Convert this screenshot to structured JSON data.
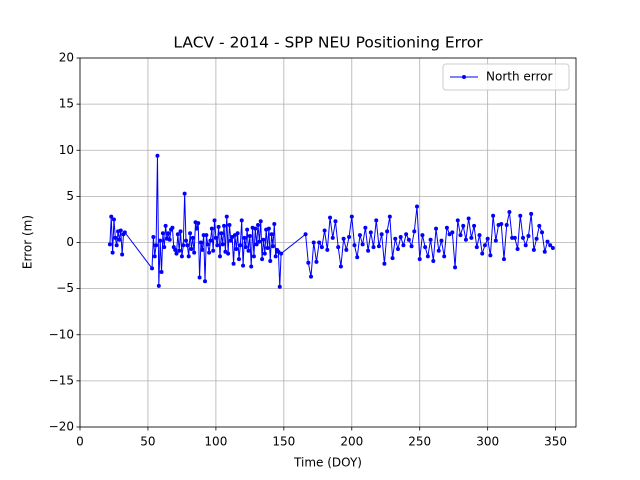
{
  "chart_data": {
    "type": "line",
    "title": "LACV - 2014 - SPP NEU Positioning Error",
    "xlabel": "Time (DOY)",
    "ylabel": "Error (m)",
    "xlim": [
      0,
      365
    ],
    "ylim": [
      -20,
      20
    ],
    "xticks": [
      0,
      50,
      100,
      150,
      200,
      250,
      300,
      350
    ],
    "yticks": [
      {
        "value": -20,
        "label": "−20"
      },
      {
        "value": -15,
        "label": "−15"
      },
      {
        "value": -10,
        "label": "−10"
      },
      {
        "value": -5,
        "label": "−5"
      },
      0,
      5,
      10,
      15,
      20
    ],
    "grid": true,
    "legend": "upper right",
    "x": [
      22,
      23,
      24,
      25,
      26,
      27,
      28,
      29,
      30,
      31,
      32,
      33,
      53,
      54,
      55,
      56,
      57,
      58,
      59,
      60,
      61,
      62,
      63,
      64,
      65,
      66,
      67,
      68,
      69,
      70,
      71,
      72,
      73,
      74,
      75,
      76,
      77,
      78,
      79,
      80,
      81,
      82,
      83,
      84,
      85,
      86,
      87,
      88,
      89,
      90,
      91,
      92,
      93,
      94,
      95,
      96,
      97,
      98,
      99,
      100,
      101,
      102,
      103,
      104,
      105,
      106,
      107,
      108,
      109,
      110,
      111,
      112,
      113,
      114,
      115,
      116,
      117,
      118,
      119,
      120,
      121,
      122,
      123,
      124,
      125,
      126,
      127,
      128,
      129,
      130,
      131,
      132,
      133,
      134,
      135,
      136,
      137,
      138,
      139,
      140,
      141,
      142,
      143,
      144,
      145,
      146,
      147,
      148,
      166,
      168,
      170,
      172,
      174,
      176,
      178,
      180,
      182,
      184,
      186,
      188,
      190,
      192,
      194,
      196,
      198,
      200,
      202,
      204,
      206,
      208,
      210,
      212,
      214,
      216,
      218,
      220,
      222,
      224,
      226,
      228,
      230,
      232,
      234,
      236,
      238,
      240,
      242,
      244,
      246,
      248,
      250,
      252,
      254,
      256,
      258,
      260,
      262,
      264,
      266,
      268,
      270,
      272,
      274,
      276,
      278,
      280,
      282,
      284,
      286,
      288,
      290,
      292,
      294,
      296,
      298,
      300,
      302,
      304,
      306,
      308,
      310,
      312,
      314,
      316,
      318,
      320,
      322,
      324,
      326,
      328,
      330,
      332,
      334,
      336,
      338,
      340,
      342,
      344,
      346,
      348
    ],
    "series": [
      {
        "name": "North error",
        "color": "#0000ff",
        "values": [
          -0.2,
          2.8,
          -1.1,
          2.5,
          0.5,
          -0.3,
          1.2,
          0.3,
          1.3,
          -1.3,
          0.9,
          1.1,
          -2.8,
          0.6,
          -1.5,
          -0.3,
          9.4,
          -4.7,
          0.2,
          -3.2,
          1.0,
          -0.5,
          1.8,
          0.4,
          1.0,
          0.3,
          1.4,
          1.6,
          -0.5,
          -0.8,
          -1.2,
          0.9,
          -0.9,
          1.2,
          -1.5,
          -0.3,
          5.3,
          0.2,
          -0.3,
          -1.5,
          1.0,
          -0.7,
          0.5,
          -1.1,
          2.2,
          1.5,
          2.1,
          -3.8,
          0.0,
          -0.8,
          0.8,
          -4.2,
          0.8,
          -0.2,
          -1.1,
          0.2,
          1.5,
          -0.9,
          2.4,
          0.5,
          -0.3,
          1.7,
          -1.5,
          1.0,
          -0.2,
          1.8,
          -1.0,
          2.8,
          -1.2,
          1.9,
          0.2,
          0.6,
          -2.3,
          0.8,
          -0.7,
          1.0,
          -1.8,
          -0.3,
          2.4,
          -2.5,
          0.5,
          -0.5,
          1.4,
          -0.9,
          0.7,
          -2.6,
          1.6,
          -1.5,
          1.5,
          -0.2,
          1.9,
          0.1,
          2.3,
          -1.8,
          0.3,
          -1.2,
          1.4,
          -0.6,
          1.5,
          -2.0,
          0.9,
          -0.4,
          2.0,
          -1.5,
          -0.8,
          -1.0,
          -4.8,
          -1.2,
          0.9,
          -2.2,
          -3.7,
          0.0,
          -2.1,
          0.0,
          -0.5,
          1.3,
          -0.8,
          2.7,
          0.5,
          2.3,
          -0.5,
          -2.6,
          0.4,
          -0.8,
          0.6,
          2.8,
          -0.3,
          -1.6,
          0.8,
          -0.2,
          1.6,
          -0.9,
          1.1,
          -0.5,
          2.4,
          -0.4,
          0.9,
          -2.3,
          1.2,
          2.8,
          -1.7,
          0.4,
          -0.7,
          0.6,
          -0.3,
          0.9,
          0.3,
          -0.4,
          1.2,
          3.9,
          -1.8,
          0.8,
          -0.5,
          -1.5,
          0.3,
          -2.0,
          1.5,
          -0.9,
          0.2,
          -1.5,
          1.6,
          0.9,
          1.1,
          -2.7,
          2.4,
          0.8,
          1.8,
          0.3,
          2.6,
          0.5,
          1.8,
          -0.5,
          0.8,
          -1.2,
          -0.3,
          0.4,
          -1.4,
          2.9,
          0.2,
          1.9,
          2.0,
          -1.8,
          1.9,
          3.3,
          0.5,
          0.5,
          -0.7,
          2.9,
          0.5,
          -0.3,
          0.7,
          3.1,
          -0.8,
          0.4,
          1.8,
          1.1,
          -1.0,
          0.1,
          -0.3,
          -0.6
        ]
      }
    ]
  }
}
